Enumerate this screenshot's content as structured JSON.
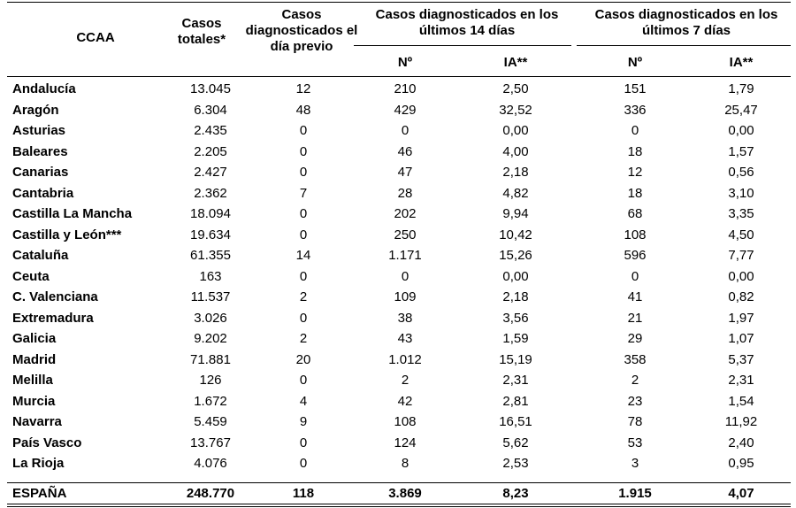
{
  "headers": {
    "ccaa": "CCAA",
    "casos_totales": "Casos totales*",
    "casos_previo": "Casos diagnosticados el día previo",
    "group14": "Casos diagnosticados en los últimos 14 días",
    "group7": "Casos diagnosticados en los últimos 7 días",
    "n14": "Nº",
    "ia14": "IA**",
    "n7": "Nº",
    "ia7": "IA**"
  },
  "rows": [
    {
      "ccaa": "Andalucía",
      "total": "13.045",
      "previo": "12",
      "n14": "210",
      "ia14": "2,50",
      "n7": "151",
      "ia7": "1,79"
    },
    {
      "ccaa": "Aragón",
      "total": "6.304",
      "previo": "48",
      "n14": "429",
      "ia14": "32,52",
      "n7": "336",
      "ia7": "25,47"
    },
    {
      "ccaa": "Asturias",
      "total": "2.435",
      "previo": "0",
      "n14": "0",
      "ia14": "0,00",
      "n7": "0",
      "ia7": "0,00"
    },
    {
      "ccaa": "Baleares",
      "total": "2.205",
      "previo": "0",
      "n14": "46",
      "ia14": "4,00",
      "n7": "18",
      "ia7": "1,57"
    },
    {
      "ccaa": "Canarias",
      "total": "2.427",
      "previo": "0",
      "n14": "47",
      "ia14": "2,18",
      "n7": "12",
      "ia7": "0,56"
    },
    {
      "ccaa": "Cantabria",
      "total": "2.362",
      "previo": "7",
      "n14": "28",
      "ia14": "4,82",
      "n7": "18",
      "ia7": "3,10"
    },
    {
      "ccaa": "Castilla La Mancha",
      "total": "18.094",
      "previo": "0",
      "n14": "202",
      "ia14": "9,94",
      "n7": "68",
      "ia7": "3,35"
    },
    {
      "ccaa": "Castilla y León***",
      "total": "19.634",
      "previo": "0",
      "n14": "250",
      "ia14": "10,42",
      "n7": "108",
      "ia7": "4,50"
    },
    {
      "ccaa": "Cataluña",
      "total": "61.355",
      "previo": "14",
      "n14": "1.171",
      "ia14": "15,26",
      "n7": "596",
      "ia7": "7,77"
    },
    {
      "ccaa": "Ceuta",
      "total": "163",
      "previo": "0",
      "n14": "0",
      "ia14": "0,00",
      "n7": "0",
      "ia7": "0,00"
    },
    {
      "ccaa": "C. Valenciana",
      "total": "11.537",
      "previo": "2",
      "n14": "109",
      "ia14": "2,18",
      "n7": "41",
      "ia7": "0,82"
    },
    {
      "ccaa": "Extremadura",
      "total": "3.026",
      "previo": "0",
      "n14": "38",
      "ia14": "3,56",
      "n7": "21",
      "ia7": "1,97"
    },
    {
      "ccaa": "Galicia",
      "total": "9.202",
      "previo": "2",
      "n14": "43",
      "ia14": "1,59",
      "n7": "29",
      "ia7": "1,07"
    },
    {
      "ccaa": "Madrid",
      "total": "71.881",
      "previo": "20",
      "n14": "1.012",
      "ia14": "15,19",
      "n7": "358",
      "ia7": "5,37"
    },
    {
      "ccaa": "Melilla",
      "total": "126",
      "previo": "0",
      "n14": "2",
      "ia14": "2,31",
      "n7": "2",
      "ia7": "2,31"
    },
    {
      "ccaa": "Murcia",
      "total": "1.672",
      "previo": "4",
      "n14": "42",
      "ia14": "2,81",
      "n7": "23",
      "ia7": "1,54"
    },
    {
      "ccaa": "Navarra",
      "total": "5.459",
      "previo": "9",
      "n14": "108",
      "ia14": "16,51",
      "n7": "78",
      "ia7": "11,92"
    },
    {
      "ccaa": "País Vasco",
      "total": "13.767",
      "previo": "0",
      "n14": "124",
      "ia14": "5,62",
      "n7": "53",
      "ia7": "2,40"
    },
    {
      "ccaa": "La Rioja",
      "total": "4.076",
      "previo": "0",
      "n14": "8",
      "ia14": "2,53",
      "n7": "3",
      "ia7": "0,95"
    }
  ],
  "total": {
    "ccaa": "ESPAÑA",
    "total": "248.770",
    "previo": "118",
    "n14": "3.869",
    "ia14": "8,23",
    "n7": "1.915",
    "ia7": "4,07"
  }
}
